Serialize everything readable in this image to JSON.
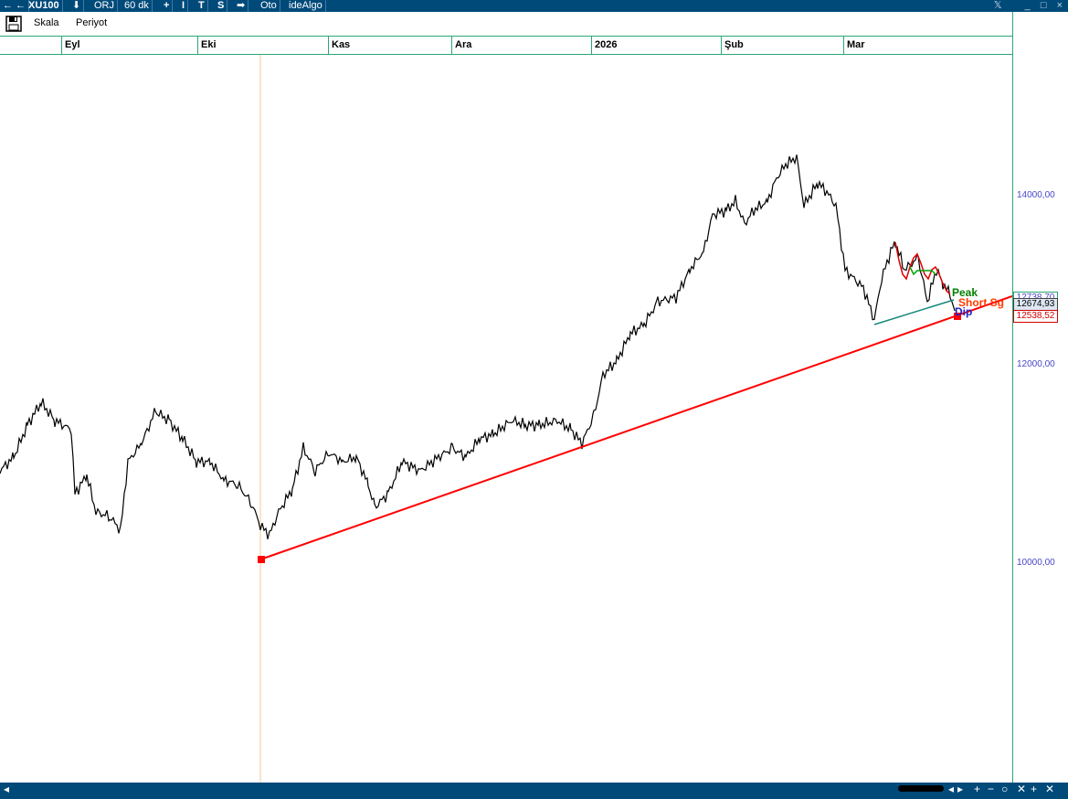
{
  "toolbar": {
    "nav_left": "← ←",
    "symbol": "XU100",
    "download": "⬇",
    "orj": "ORJ",
    "period": "60 dk",
    "plus": "+",
    "i": "I",
    "t": "T",
    "s": "S",
    "arrow": "➡",
    "oto": "Oto",
    "brand": "ideAlgo",
    "x_icon": "𝕏",
    "minimize": "_",
    "maximize": "□",
    "close": "×"
  },
  "menu": {
    "skala": "Skala",
    "periyot": "Periyot"
  },
  "time_axis": {
    "months": [
      "Eyl",
      "Eki",
      "Kas",
      "Ara",
      "2026",
      "Şub",
      "Mar"
    ]
  },
  "price_axis": {
    "ticks": [
      "14000,00",
      "12000,00",
      "10000,00"
    ],
    "current_price": "12674,93",
    "support_price": "12538,52",
    "peak_price": "12738,70"
  },
  "annotations": {
    "peak": "Peak",
    "short": "Short Sg",
    "dip": "Dip"
  },
  "colors": {
    "accent": "#004a7a",
    "grid": "#2aa876",
    "trendline": "#ff0000",
    "teal_line": "#16897a",
    "price_line": "#000000",
    "peak_label": "#008000",
    "short_label": "#ff3c00",
    "dip_label": "#2020c8"
  },
  "statusbar": {
    "left_arrow": "◂",
    "controls": [
      "◂",
      "▸",
      "+",
      "−",
      "○",
      "✕",
      "+",
      "✕"
    ]
  }
}
